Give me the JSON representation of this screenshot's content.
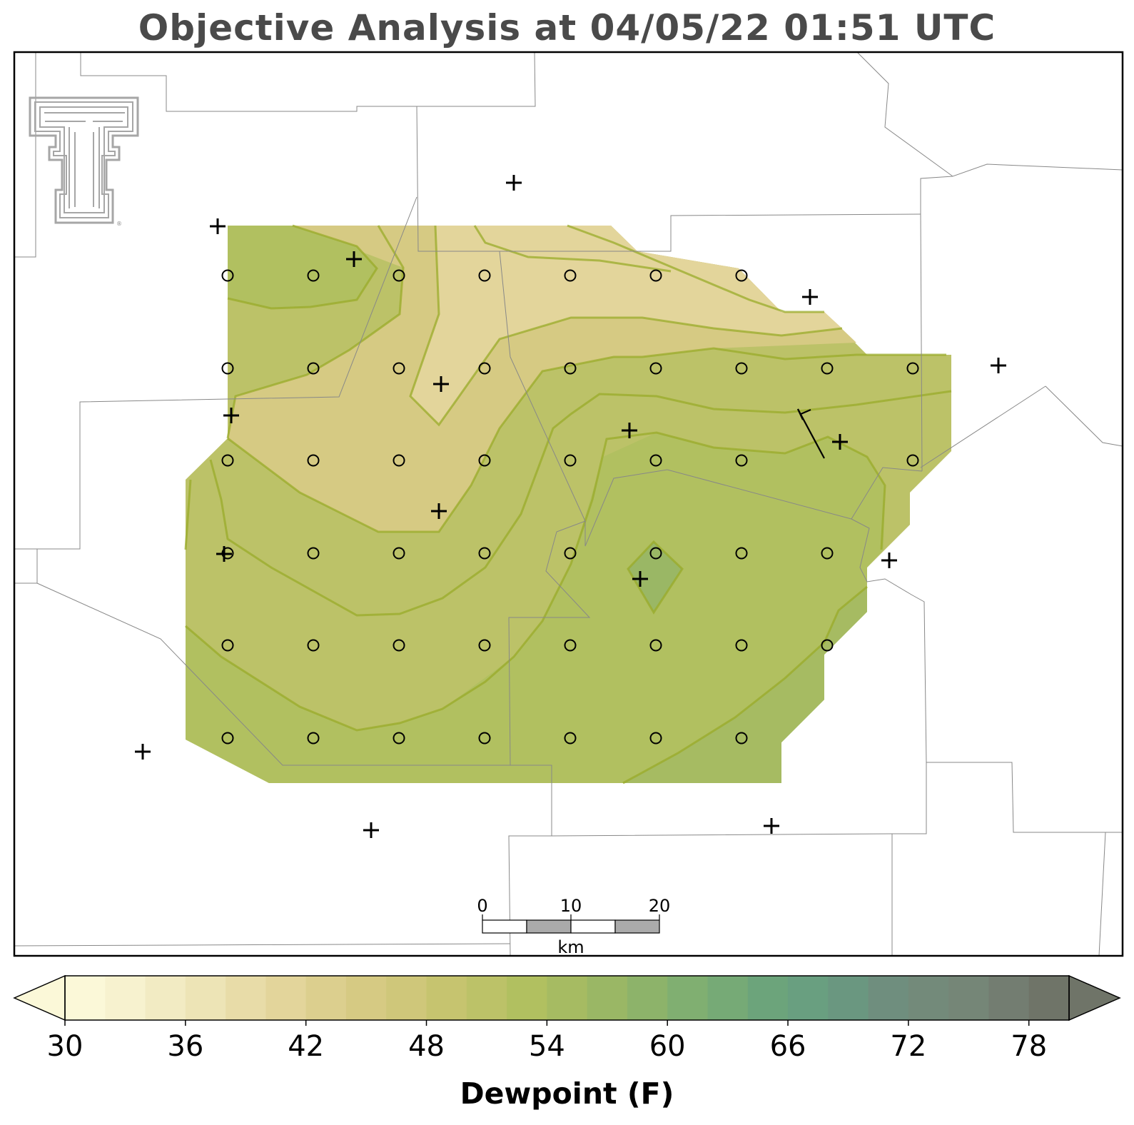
{
  "title": "Objective Analysis at 04/05/22 01:51 UTC",
  "colors": {
    "title": "#4a4a4a",
    "county_lines": "#888888",
    "contour_line": "#9aab2a",
    "markers": "#000000",
    "colorbar_steps": [
      "#fbf8d8",
      "#f7f2cf",
      "#f2ebc3",
      "#ede4b6",
      "#e8dca8",
      "#e3d59b",
      "#dccf8e",
      "#d6ca83",
      "#cfc77a",
      "#c6c46f",
      "#bcc268",
      "#b1c060",
      "#a6bb62",
      "#9ab765",
      "#8db36a",
      "#80af71",
      "#76aa76",
      "#6ca47b",
      "#699f80",
      "#6a9780",
      "#6f8e7e",
      "#738a7a",
      "#758677",
      "#737d71",
      "#6f7468"
    ]
  },
  "logo": {
    "name": "Texas Tech double-T logo",
    "mark": "®"
  },
  "scale_bar": {
    "tick_labels": [
      "0",
      "10",
      "20"
    ],
    "unit": "km"
  },
  "colorbar": {
    "label": "Dewpoint (F)",
    "min": 30,
    "max": 80,
    "step": 2,
    "extend": "both",
    "tick_labels": [
      "30",
      "36",
      "42",
      "48",
      "54",
      "60",
      "66",
      "72",
      "78"
    ]
  }
}
